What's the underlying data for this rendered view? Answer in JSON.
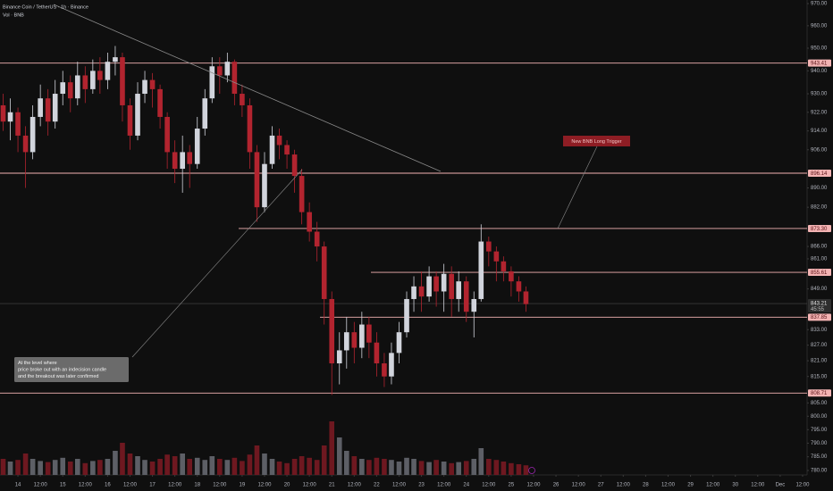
{
  "chart_data": {
    "type": "candlestick",
    "title": "Binance Coin / TetherUS · 1h · Binance",
    "subtitle": "Vol · BNB",
    "x": [
      13.67,
      13.83,
      14,
      14.17,
      14.33,
      14.5,
      14.67,
      14.83,
      15,
      15.17,
      15.33,
      15.5,
      15.67,
      15.83,
      16,
      16.17,
      16.33,
      16.5,
      16.67,
      16.83,
      17,
      17.17,
      17.33,
      17.5,
      17.67,
      17.83,
      18,
      18.17,
      18.33,
      18.5,
      18.67,
      18.83,
      19,
      19.17,
      19.33,
      19.5,
      19.67,
      19.83,
      20,
      20.17,
      20.33,
      20.5,
      20.67,
      20.83,
      21,
      21.17,
      21.33,
      21.5,
      21.67,
      21.83,
      22,
      22.17,
      22.33,
      22.5,
      22.67,
      22.83,
      23,
      23.17,
      23.33,
      23.5,
      23.67,
      23.83,
      24,
      24.17,
      24.33,
      24.5,
      24.67,
      24.83,
      25,
      25.17,
      25.33
    ],
    "open": [
      925,
      918,
      922,
      912,
      905,
      920,
      928,
      918,
      930,
      935,
      928,
      938,
      932,
      940,
      936,
      944,
      946,
      925,
      912,
      930,
      936,
      932,
      920,
      905,
      898,
      905,
      900,
      915,
      928,
      942,
      938,
      944,
      930,
      925,
      905,
      882,
      900,
      912,
      908,
      904,
      895,
      880,
      872,
      866,
      845,
      820,
      825,
      832,
      826,
      835,
      828,
      820,
      815,
      824,
      832,
      845,
      850,
      846,
      854,
      848,
      855,
      845,
      852,
      840,
      845,
      868,
      864,
      860,
      856,
      852,
      848
    ],
    "high": [
      930,
      928,
      924,
      916,
      925,
      934,
      932,
      936,
      940,
      938,
      944,
      942,
      945,
      946,
      948,
      951,
      948,
      928,
      935,
      940,
      939,
      934,
      922,
      910,
      912,
      908,
      920,
      932,
      946,
      946,
      948,
      945,
      934,
      928,
      908,
      905,
      916,
      915,
      910,
      906,
      898,
      884,
      876,
      868,
      848,
      832,
      838,
      836,
      840,
      838,
      832,
      824,
      828,
      836,
      848,
      854,
      856,
      858,
      856,
      859,
      858,
      856,
      854,
      848,
      875,
      870,
      866,
      862,
      858,
      854,
      850
    ],
    "low": [
      914,
      910,
      905,
      890,
      902,
      916,
      912,
      915,
      925,
      922,
      925,
      926,
      930,
      930,
      932,
      938,
      918,
      906,
      910,
      926,
      924,
      915,
      898,
      892,
      888,
      890,
      898,
      912,
      926,
      930,
      935,
      925,
      920,
      898,
      876,
      880,
      898,
      902,
      898,
      888,
      875,
      868,
      860,
      835,
      808,
      812,
      818,
      820,
      822,
      822,
      815,
      811,
      812,
      820,
      830,
      840,
      840,
      844,
      842,
      840,
      838,
      840,
      836,
      830,
      844,
      858,
      852,
      852,
      846,
      844,
      840
    ],
    "close": [
      918,
      922,
      912,
      905,
      920,
      928,
      918,
      930,
      935,
      928,
      938,
      932,
      940,
      936,
      944,
      946,
      925,
      912,
      930,
      936,
      932,
      920,
      905,
      898,
      905,
      900,
      915,
      928,
      942,
      938,
      944,
      930,
      925,
      905,
      882,
      900,
      912,
      908,
      904,
      895,
      880,
      872,
      866,
      845,
      820,
      825,
      832,
      826,
      835,
      828,
      820,
      815,
      824,
      832,
      845,
      850,
      846,
      854,
      848,
      855,
      845,
      852,
      840,
      845,
      868,
      864,
      860,
      856,
      852,
      848,
      843
    ],
    "volume": [
      30,
      25,
      28,
      40,
      30,
      26,
      24,
      28,
      32,
      25,
      30,
      22,
      26,
      28,
      30,
      45,
      60,
      40,
      35,
      28,
      25,
      30,
      38,
      35,
      40,
      30,
      32,
      28,
      35,
      30,
      28,
      32,
      26,
      38,
      55,
      40,
      30,
      25,
      22,
      30,
      35,
      32,
      28,
      55,
      100,
      70,
      45,
      35,
      30,
      28,
      32,
      30,
      28,
      25,
      32,
      30,
      26,
      24,
      28,
      25,
      22,
      24,
      26,
      30,
      50,
      30,
      28,
      25,
      22,
      20,
      18
    ],
    "up_color": "#d1d4dc",
    "down_color": "#b2242f",
    "volume_up_color": "#5d5f66",
    "volume_down_color": "#6e1820",
    "level_color": "#f3b3b3",
    "log_scale": true,
    "ylim": [
      780,
      970
    ],
    "yticks": [
      {
        "value": 970,
        "label": "970.00"
      },
      {
        "value": 960,
        "label": "960.00"
      },
      {
        "value": 950,
        "label": "950.00"
      },
      {
        "value": 940,
        "label": "940.00"
      },
      {
        "value": 930,
        "label": "930.00"
      },
      {
        "value": 922,
        "label": "922.00"
      },
      {
        "value": 914,
        "label": "914.00"
      },
      {
        "value": 906,
        "label": "906.00"
      },
      {
        "value": 890,
        "label": "890.00"
      },
      {
        "value": 882,
        "label": "882.00"
      },
      {
        "value": 866,
        "label": "866.00"
      },
      {
        "value": 861,
        "label": "861.00"
      },
      {
        "value": 849,
        "label": "849.00"
      },
      {
        "value": 833,
        "label": "833.00"
      },
      {
        "value": 827,
        "label": "827.00"
      },
      {
        "value": 821,
        "label": "821.00"
      },
      {
        "value": 815,
        "label": "815.00"
      },
      {
        "value": 805,
        "label": "805.00"
      },
      {
        "value": 800,
        "label": "800.00"
      },
      {
        "value": 795,
        "label": "795.00"
      },
      {
        "value": 790,
        "label": "790.00"
      },
      {
        "value": 785,
        "label": "785.00"
      },
      {
        "value": 780,
        "label": "780.00"
      }
    ],
    "xlim": [
      13.6,
      31.6
    ],
    "xticks": [
      14,
      {
        "value": 14.5,
        "label": "12:00"
      },
      15,
      {
        "value": 15.5,
        "label": "12:00"
      },
      16,
      {
        "value": 16.5,
        "label": "12:00"
      },
      17,
      {
        "value": 17.5,
        "label": "12:00"
      },
      18,
      {
        "value": 18.5,
        "label": "12:00"
      },
      19,
      {
        "value": 19.5,
        "label": "12:00"
      },
      20,
      {
        "value": 20.5,
        "label": "12:00"
      },
      21,
      {
        "value": 21.5,
        "label": "12:00"
      },
      22,
      {
        "value": 22.5,
        "label": "12:00"
      },
      23,
      {
        "value": 23.5,
        "label": "12:00"
      },
      24,
      {
        "value": 24.5,
        "label": "12:00"
      },
      25,
      {
        "value": 25.5,
        "label": "12:00"
      },
      26,
      {
        "value": 26.5,
        "label": "12:00"
      },
      27,
      {
        "value": 27.5,
        "label": "12:00"
      },
      28,
      {
        "value": 28.5,
        "label": "12:00"
      },
      29,
      {
        "value": 29.5,
        "label": "12:00"
      },
      30,
      {
        "value": 30.5,
        "label": "12:00"
      },
      {
        "value": 31,
        "label": "Dec"
      },
      {
        "value": 31.5,
        "label": "12:00"
      }
    ],
    "levels": [
      943.41,
      896.14,
      {
        "value": 873.3,
        "label": "873.30"
      },
      855.61,
      837.85,
      808.71
    ],
    "last_price": 843.21,
    "countdown": "45:55",
    "annotations": {
      "trigger": "New BNB Long Trigger",
      "note": [
        "At the level where",
        "price broke out with an indecision candle",
        "and the breakout was later confirmed"
      ]
    }
  }
}
